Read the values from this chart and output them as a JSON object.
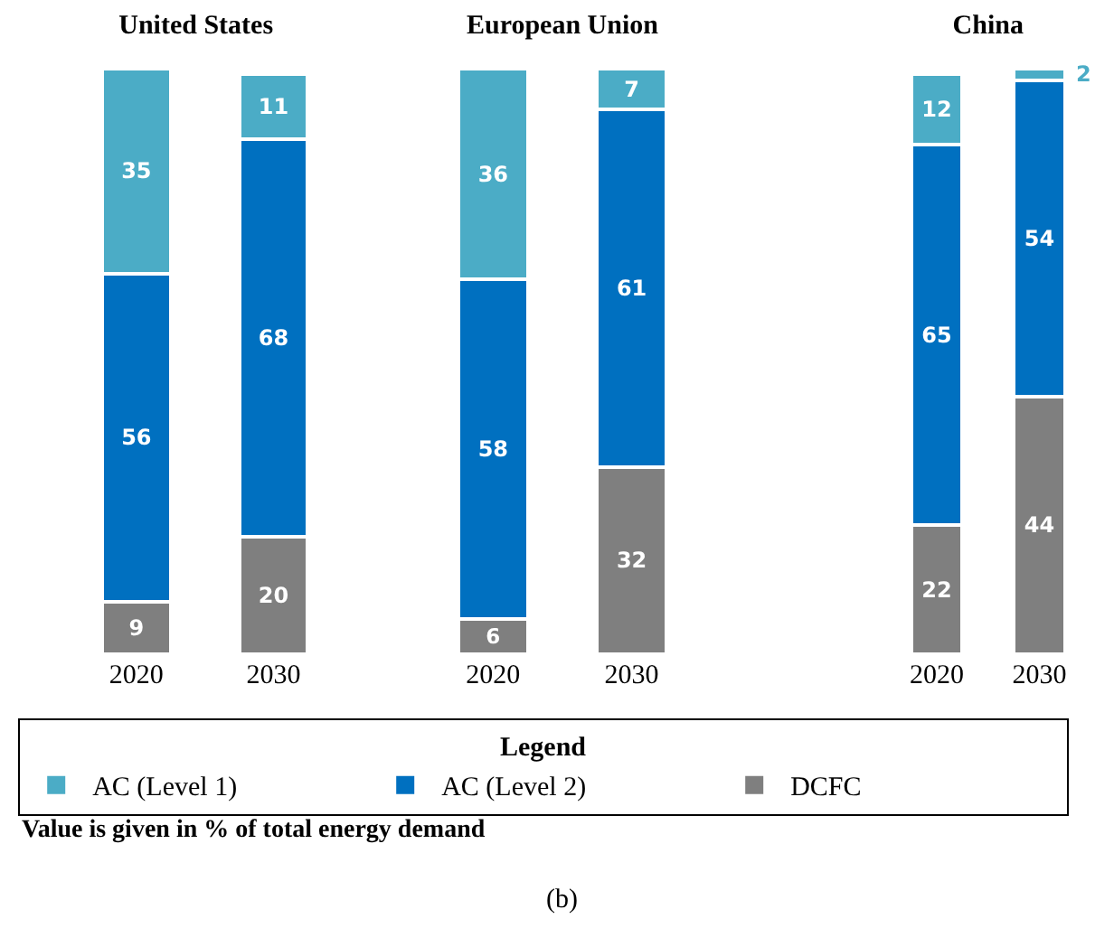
{
  "chart_data": [
    {
      "type": "bar",
      "title": "United States",
      "categories": [
        "2020",
        "2030"
      ],
      "stacked": true,
      "data_labels": true,
      "grid": false,
      "tick_labels": "x",
      "legend": "bottom",
      "legend_title": "Legend",
      "annotations": [
        "Value is given in % of total energy demand",
        "(b)"
      ],
      "series": [
        {
          "name": "DCFC",
          "color": "#7f7f7f",
          "values": [
            9,
            20
          ]
        },
        {
          "name": "AC (Level 2)",
          "color": "#0070c0",
          "values": [
            56,
            68
          ]
        },
        {
          "name": "AC (Level 1)",
          "color": "#4bacc6",
          "values": [
            35,
            11
          ]
        }
      ]
    },
    {
      "type": "bar",
      "title": "European Union",
      "categories": [
        "2020",
        "2030"
      ],
      "stacked": true,
      "data_labels": true,
      "grid": false,
      "tick_labels": "x",
      "series": [
        {
          "color": "#7f7f7f",
          "values": [
            6,
            32
          ]
        },
        {
          "color": "#0070c0",
          "values": [
            58,
            61
          ]
        },
        {
          "color": "#4bacc6",
          "values": [
            36,
            7
          ]
        }
      ]
    },
    {
      "type": "bar",
      "title": "China",
      "categories": [
        "2020",
        "2030"
      ],
      "stacked": true,
      "data_labels": true,
      "grid": false,
      "tick_labels": "x",
      "series": [
        {
          "color": "#7f7f7f",
          "values": [
            22,
            44
          ]
        },
        {
          "color": "#0070c0",
          "values": [
            65,
            54
          ]
        },
        {
          "color": "#4bacc6",
          "values": [
            12,
            2
          ]
        }
      ]
    }
  ]
}
